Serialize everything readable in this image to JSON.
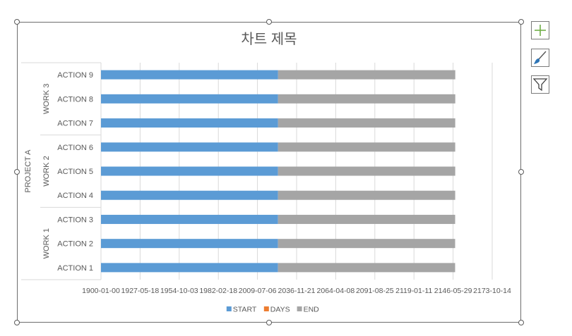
{
  "chart_data": {
    "type": "bar",
    "orientation": "horizontal",
    "stacked": true,
    "title": "차트 제목",
    "xlabel": "",
    "ylabel": "",
    "category_groups": [
      {
        "label": "PROJECT A",
        "groups": [
          {
            "label": "WORK 1",
            "items": [
              "ACTION 1",
              "ACTION 2",
              "ACTION 3"
            ]
          },
          {
            "label": "WORK 2",
            "items": [
              "ACTION 4",
              "ACTION 5",
              "ACTION 6"
            ]
          },
          {
            "label": "WORK 3",
            "items": [
              "ACTION 7",
              "ACTION 8",
              "ACTION 9"
            ]
          }
        ]
      }
    ],
    "categories": [
      "ACTION 1",
      "ACTION 2",
      "ACTION 3",
      "ACTION 4",
      "ACTION 5",
      "ACTION 6",
      "ACTION 7",
      "ACTION 8",
      "ACTION 9"
    ],
    "series": [
      {
        "name": "START",
        "color": "#5b9bd5",
        "values": [
          45250,
          45250,
          45255,
          45260,
          45262,
          45265,
          45268,
          45270,
          45272
        ]
      },
      {
        "name": "DAYS",
        "color": "#ed7d31",
        "values": [
          10,
          12,
          8,
          9,
          11,
          7,
          6,
          10,
          8
        ]
      },
      {
        "name": "END",
        "color": "#a5a5a5",
        "values": [
          45260,
          45262,
          45263,
          45269,
          45273,
          45272,
          45274,
          45280,
          45280
        ]
      }
    ],
    "xlim": [
      0,
      100000
    ],
    "x_tick_values": [
      0,
      10000,
      20000,
      30000,
      40000,
      50000,
      60000,
      70000,
      80000,
      90000,
      100000
    ],
    "x_tick_labels": [
      "1900-01-00",
      "1927-05-18",
      "1954-10-03",
      "1982-02-18",
      "2009-07-06",
      "2036-11-21",
      "2064-04-08",
      "2091-08-25",
      "2119-01-11",
      "2146-05-29",
      "2173-10-14"
    ],
    "grid": "vertical",
    "legend": "bottom"
  },
  "colors": {
    "axis_text": "#595959",
    "title_text": "#595959",
    "gridline": "#d9d9d9"
  },
  "side_buttons": [
    {
      "icon": "chart-elements-plus-icon",
      "color": "#70ad47"
    },
    {
      "icon": "chart-styles-brush-icon",
      "color": "#2e75b6"
    },
    {
      "icon": "chart-filter-funnel-icon",
      "color": "#404040"
    }
  ]
}
